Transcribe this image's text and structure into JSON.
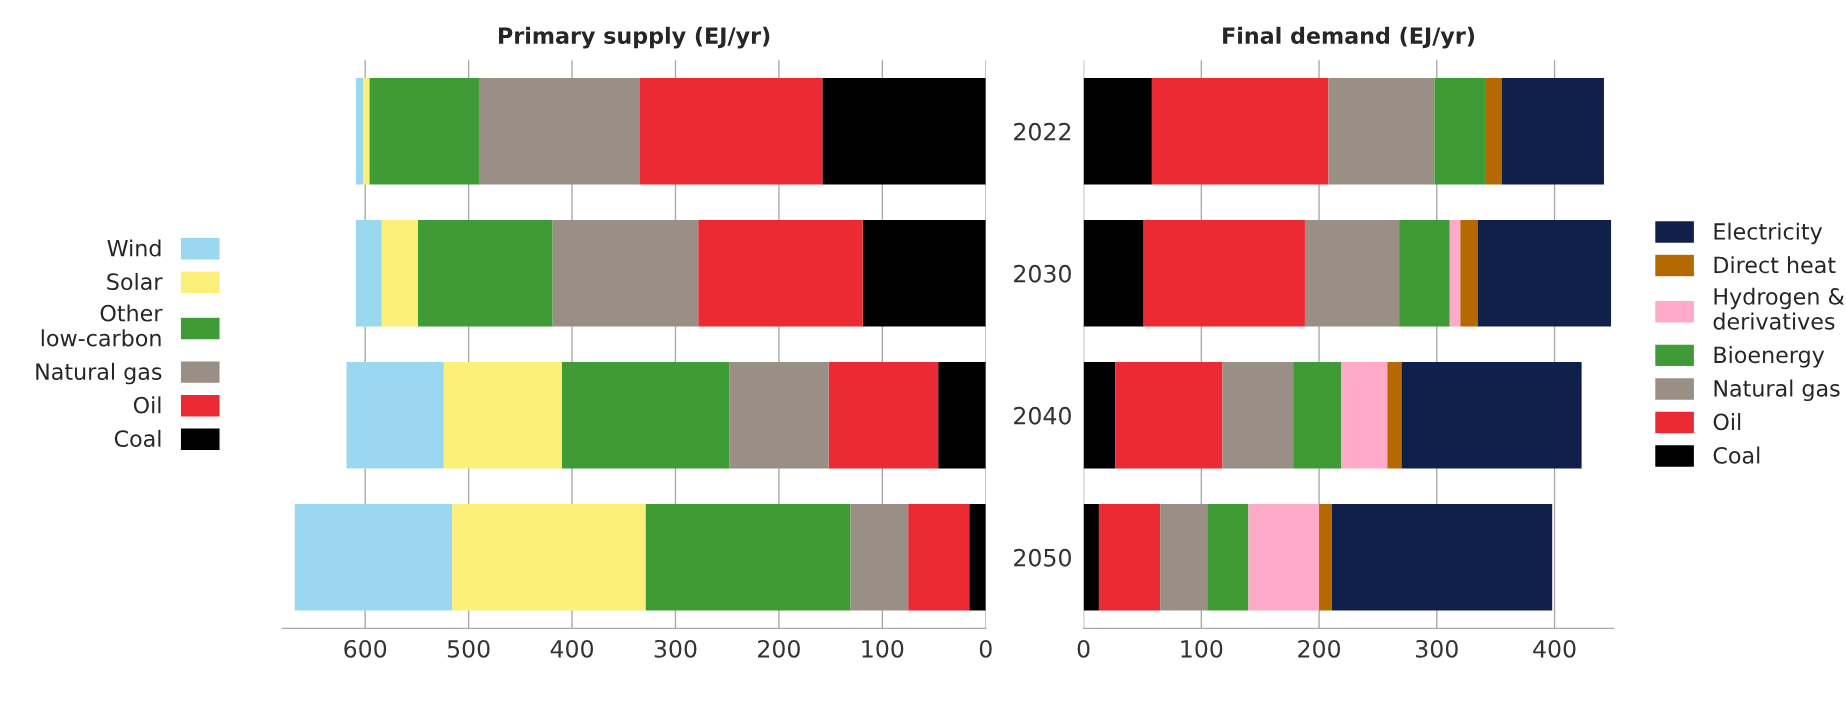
{
  "chart_data": [
    {
      "type": "bar",
      "orientation": "horizontal",
      "stacked": true,
      "title": "Primary supply (EJ/yr)",
      "categories": [
        "2022",
        "2030",
        "2040",
        "2050"
      ],
      "series": [
        {
          "name": "Coal",
          "color": "#000000",
          "values": [
            158,
            119,
            46,
            16
          ]
        },
        {
          "name": "Oil",
          "color": "#ec2a33",
          "values": [
            177,
            159,
            106,
            59
          ]
        },
        {
          "name": "Natural gas",
          "color": "#998f85",
          "values": [
            155,
            141,
            96,
            56
          ]
        },
        {
          "name": "Other low-carbon",
          "color": "#3f9b35",
          "values": [
            106,
            130,
            162,
            198
          ]
        },
        {
          "name": "Solar",
          "color": "#fdf07a",
          "values": [
            6,
            35,
            114,
            187
          ]
        },
        {
          "name": "Wind",
          "color": "#9ad8f0",
          "values": [
            7,
            25,
            94,
            152
          ]
        }
      ],
      "xlim": [
        680,
        0
      ],
      "xticks": [
        600,
        500,
        400,
        300,
        200,
        100,
        0
      ],
      "grid": "x",
      "legend": "left",
      "tick_labels": "x"
    },
    {
      "type": "bar",
      "orientation": "horizontal",
      "stacked": true,
      "title": "Final demand (EJ/yr)",
      "categories": [
        "2022",
        "2030",
        "2040",
        "2050"
      ],
      "series": [
        {
          "name": "Coal",
          "color": "#000000",
          "values": [
            58,
            51,
            27,
            13
          ]
        },
        {
          "name": "Oil",
          "color": "#ec2a33",
          "values": [
            150,
            137,
            91,
            52
          ]
        },
        {
          "name": "Natural gas",
          "color": "#998f85",
          "values": [
            90,
            80,
            60,
            40
          ]
        },
        {
          "name": "Bioenergy",
          "color": "#3f9b35",
          "values": [
            43,
            43,
            41,
            35
          ]
        },
        {
          "name": "Hydrogen & derivatives",
          "color": "#ffaac8",
          "values": [
            0,
            9,
            39,
            60
          ]
        },
        {
          "name": "Direct heat",
          "color": "#b46a00",
          "values": [
            14,
            15,
            12,
            11
          ]
        },
        {
          "name": "Electricity",
          "color": "#0f204b",
          "values": [
            87,
            113,
            153,
            187
          ]
        }
      ],
      "xlim": [
        0,
        450
      ],
      "xticks": [
        0,
        100,
        200,
        300,
        400
      ],
      "grid": "x",
      "legend": "right"
    }
  ]
}
